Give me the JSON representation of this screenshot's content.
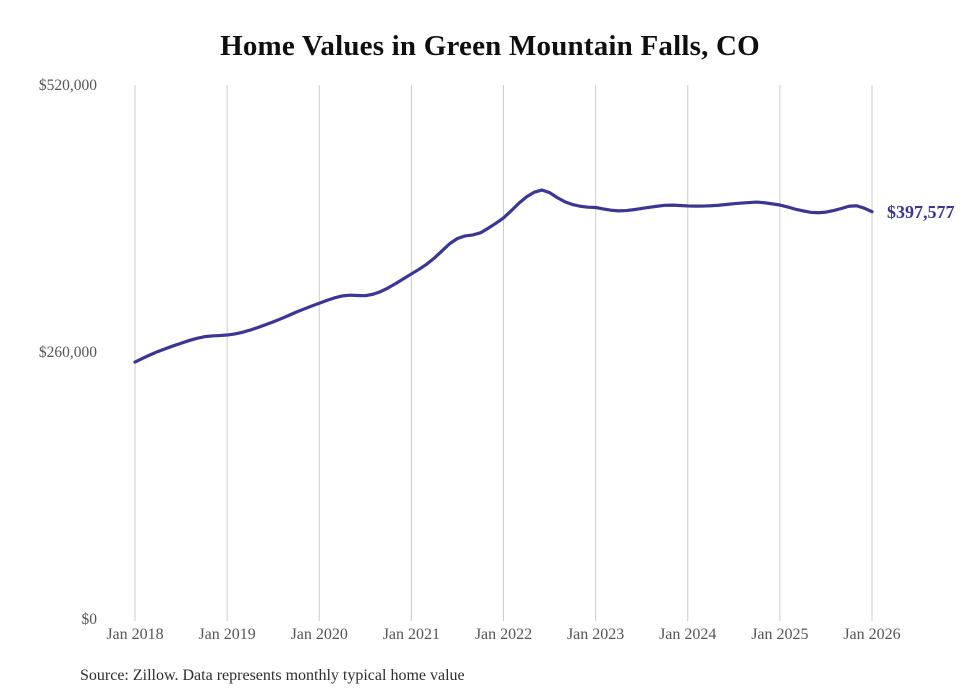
{
  "chart": {
    "title": "Home Values in Green Mountain Falls, CO",
    "end_label": "$397,577",
    "source": "Source: Zillow. Data represents monthly typical home value",
    "colors": {
      "line": "#3b3692",
      "end_label": "#3b3692",
      "gridline": "#cccccc",
      "axis_text": "#555555",
      "title_text": "#0f0f0f",
      "background": "#ffffff"
    }
  },
  "chart_data": {
    "type": "line",
    "title": "Home Values in Green Mountain Falls, CO",
    "xlabel": "",
    "ylabel": "",
    "x_start": "2018-01",
    "x_end": "2026-01",
    "x_interval": "monthly",
    "x_tick_labels": [
      "Jan 2018",
      "Jan 2019",
      "Jan 2020",
      "Jan 2021",
      "Jan 2022",
      "Jan 2023",
      "Jan 2024",
      "Jan 2025",
      "Jan 2026"
    ],
    "y_ticks": [
      {
        "label": "$520,000",
        "value": 520000
      },
      {
        "label": "$260,000",
        "value": 260000
      },
      {
        "label": "$0",
        "value": 0
      }
    ],
    "ylim": [
      0,
      520000
    ],
    "grid": "vertical-only",
    "legend_position": "none",
    "latest_value": 397577,
    "latest_value_label": "$397,577",
    "series": [
      {
        "name": "Typical home value",
        "values": [
          251200,
          254800,
          258300,
          261500,
          264300,
          267000,
          269500,
          272000,
          274200,
          275800,
          276600,
          277000,
          277500,
          278600,
          280200,
          282300,
          284800,
          287500,
          290300,
          293300,
          296500,
          299800,
          302800,
          305700,
          308500,
          311200,
          313700,
          315600,
          316300,
          316000,
          315800,
          317200,
          319800,
          323500,
          327800,
          332400,
          337000,
          341500,
          346500,
          352500,
          359500,
          366500,
          371500,
          374000,
          375000,
          377000,
          381500,
          386300,
          391500,
          398500,
          405800,
          412000,
          416600,
          418700,
          416200,
          411300,
          407200,
          404600,
          402900,
          402000,
          401700,
          400300,
          399100,
          398400,
          398700,
          399600,
          400800,
          401900,
          402900,
          403800,
          404000,
          403600,
          403200,
          403000,
          403100,
          403400,
          403900,
          404600,
          405400,
          406000,
          406500,
          407000,
          406300,
          405200,
          404100,
          402200,
          400100,
          398400,
          397000,
          396600,
          397200,
          398700,
          400700,
          402900,
          403400,
          401000,
          397577
        ]
      }
    ]
  }
}
